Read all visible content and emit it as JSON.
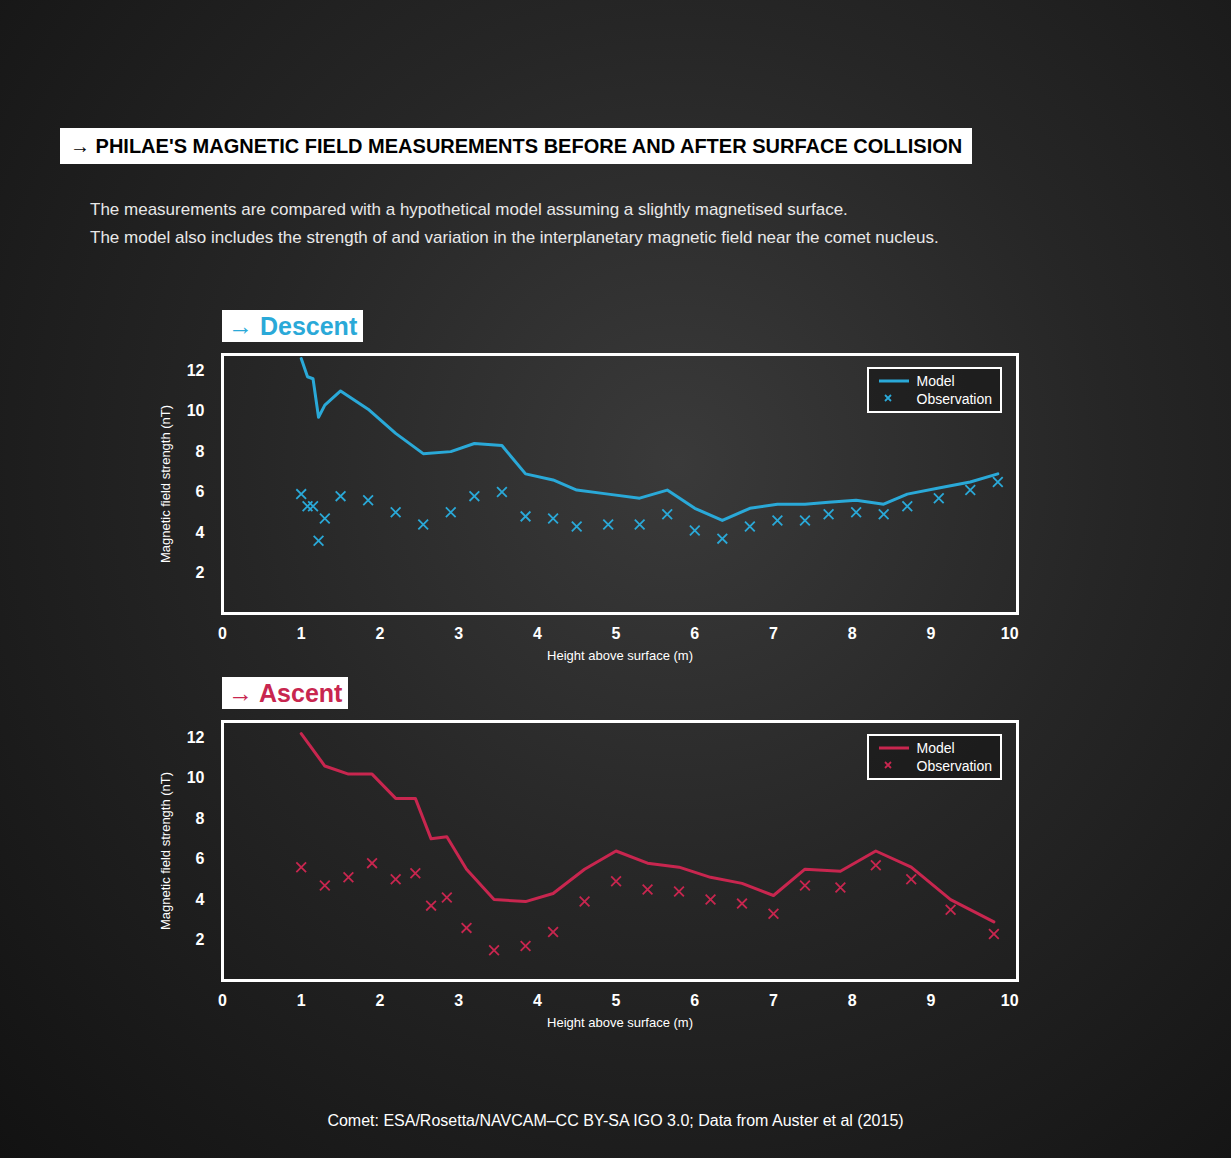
{
  "title": "→ PHILAE'S MAGNETIC FIELD MEASUREMENTS BEFORE AND AFTER SURFACE COLLISION",
  "subtitle": [
    "The measurements are compared with a hypothetical model assuming a slightly magnetised surface.",
    "The model also includes the strength of and variation in the interplanetary magnetic field near the comet nucleus."
  ],
  "caption": "Comet: ESA/Rosetta/NAVCAM–CC BY-SA IGO 3.0; Data from Auster et al (2015)",
  "chart_data": [
    {
      "type": "line",
      "title": "→ Descent",
      "x_label": "Height above surface (m)",
      "y_label": "Magnetic field strength (nT)",
      "xlim": [
        0,
        10.1
      ],
      "xticks": [
        0,
        1,
        2,
        3,
        4,
        5,
        6,
        7,
        8,
        9,
        10
      ],
      "ylim": [
        0,
        12.8
      ],
      "yticks": [
        2,
        4,
        6,
        8,
        10,
        12
      ],
      "grid": false,
      "legend": "top-right",
      "x": [
        1.0,
        1.08,
        1.15,
        1.22,
        1.3,
        1.5,
        1.85,
        2.2,
        2.55,
        2.9,
        3.2,
        3.55,
        3.85,
        4.2,
        4.5,
        4.9,
        5.3,
        5.65,
        6.0,
        6.35,
        6.7,
        7.05,
        7.4,
        7.7,
        8.05,
        8.4,
        8.7,
        9.1,
        9.5,
        9.85
      ],
      "series": [
        {
          "name": "Model",
          "color": "#2aa9d8",
          "type": "line",
          "line_style": "solid",
          "values": [
            12.6,
            11.7,
            11.6,
            9.7,
            10.3,
            11.0,
            10.1,
            8.9,
            7.9,
            8.0,
            8.4,
            8.3,
            6.9,
            6.6,
            6.1,
            5.9,
            5.7,
            6.1,
            5.2,
            4.6,
            5.2,
            5.4,
            5.4,
            5.5,
            5.6,
            5.4,
            5.9,
            6.2,
            6.5,
            6.9
          ]
        },
        {
          "name": "Observation",
          "color": "#2aa9d8",
          "type": "scatter",
          "marker": "x",
          "values": [
            5.9,
            5.3,
            5.3,
            3.6,
            4.7,
            5.8,
            5.6,
            5.0,
            4.4,
            5.0,
            5.8,
            6.0,
            4.8,
            4.7,
            4.3,
            4.4,
            4.4,
            4.9,
            4.1,
            3.7,
            4.3,
            4.6,
            4.6,
            4.9,
            5.0,
            4.9,
            5.3,
            5.7,
            6.1,
            6.5
          ]
        }
      ]
    },
    {
      "type": "line",
      "title": "→ Ascent",
      "x_label": "Height above surface (m)",
      "y_label": "Magnetic field strength (nT)",
      "xlim": [
        0,
        10.1
      ],
      "xticks": [
        0,
        1,
        2,
        3,
        4,
        5,
        6,
        7,
        8,
        9,
        10
      ],
      "ylim": [
        0,
        12.8
      ],
      "yticks": [
        2,
        4,
        6,
        8,
        10,
        12
      ],
      "grid": false,
      "legend": "top-right",
      "x": [
        1.0,
        1.3,
        1.6,
        1.9,
        2.2,
        2.45,
        2.65,
        2.85,
        3.1,
        3.45,
        3.85,
        4.2,
        4.6,
        5.0,
        5.4,
        5.8,
        6.2,
        6.6,
        7.0,
        7.4,
        7.85,
        8.3,
        8.75,
        9.25,
        9.8
      ],
      "series": [
        {
          "name": "Model",
          "color": "#c8264f",
          "type": "line",
          "line_style": "solid",
          "values": [
            12.2,
            10.6,
            10.2,
            10.2,
            9.0,
            9.0,
            7.0,
            7.1,
            5.5,
            4.0,
            3.9,
            4.3,
            5.5,
            6.4,
            5.8,
            5.6,
            5.1,
            4.8,
            4.2,
            5.5,
            5.4,
            6.4,
            5.6,
            4.0,
            2.9
          ]
        },
        {
          "name": "Observation",
          "color": "#c8264f",
          "type": "scatter",
          "marker": "x",
          "values": [
            5.6,
            4.7,
            5.1,
            5.8,
            5.0,
            5.3,
            3.7,
            4.1,
            2.6,
            1.5,
            1.7,
            2.4,
            3.9,
            4.9,
            4.5,
            4.4,
            4.0,
            3.8,
            3.3,
            4.7,
            4.6,
            5.7,
            5.0,
            3.5,
            2.3
          ]
        }
      ]
    }
  ]
}
